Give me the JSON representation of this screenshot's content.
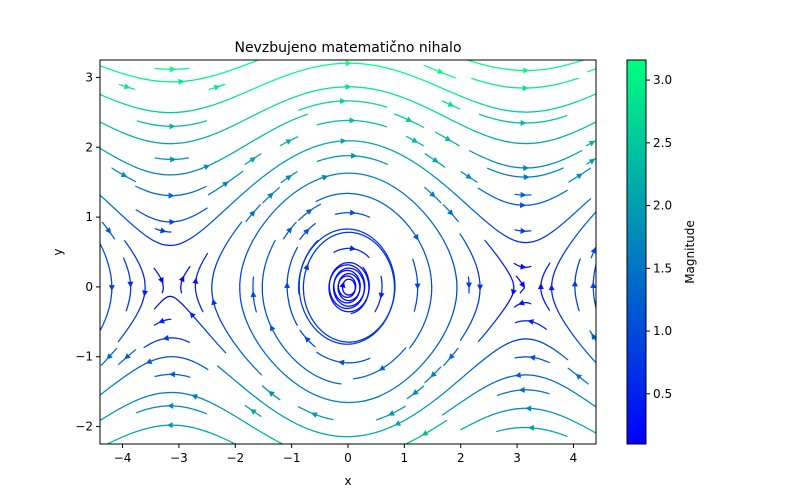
{
  "chart_data": {
    "type": "streamplot",
    "title": "Nevzbujeno matematično nihalo",
    "xlabel": "x",
    "ylabel": "y",
    "xlim": [
      -4.4,
      4.4
    ],
    "ylim": [
      -2.25,
      3.25
    ],
    "x_ticks": [
      -4,
      -3,
      -2,
      -1,
      0,
      1,
      2,
      3,
      4
    ],
    "x_tick_labels": [
      "−4",
      "−3",
      "−2",
      "−1",
      "0",
      "1",
      "2",
      "3",
      "4"
    ],
    "y_ticks": [
      -2,
      -1,
      0,
      1,
      2,
      3
    ],
    "y_tick_labels": [
      "−2",
      "−1",
      "0",
      "1",
      "2",
      "3"
    ],
    "field": {
      "dx": "y",
      "dy": "-sin(x)"
    },
    "grid": false,
    "colorbar": {
      "label": "Magnitude",
      "range": [
        0.1,
        3.16
      ],
      "ticks": [
        0.5,
        1.0,
        1.5,
        2.0,
        2.5,
        3.0
      ],
      "tick_labels": [
        "0.5",
        "1.0",
        "1.5",
        "2.0",
        "2.5",
        "3.0"
      ],
      "colormap": "winter",
      "color_min": "#0000ff",
      "color_max": "#00ff80"
    }
  }
}
